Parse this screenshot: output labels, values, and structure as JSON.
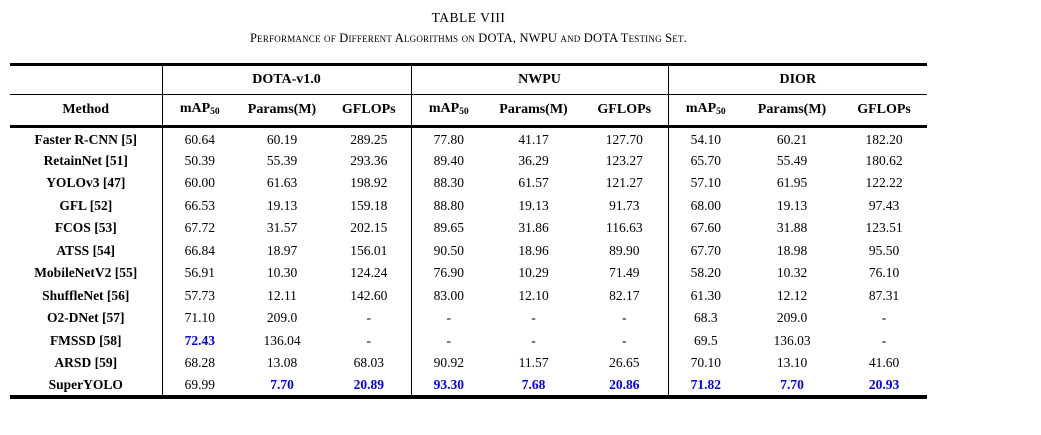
{
  "title": "TABLE VIII",
  "caption": "Performance of Different Algorithms on DOTA, NWPU and DOTA Testing Set.",
  "colors": {
    "highlight_blue": "#0000EE",
    "text": "#000000",
    "rules": "#000000"
  },
  "table": {
    "method_header": "Method",
    "groups": [
      "DOTA-v1.0",
      "NWPU",
      "DIOR"
    ],
    "metric_headers": {
      "map_label": "mAP",
      "map_subscript": "50",
      "params_label": "Params(M)",
      "gflops_label": "GFLOPs"
    },
    "rows": [
      {
        "method": "Faster R-CNN [5]",
        "values": [
          "60.64",
          "60.19",
          "289.25",
          "77.80",
          "41.17",
          "127.70",
          "54.10",
          "60.21",
          "182.20"
        ],
        "blue": []
      },
      {
        "method": "RetainNet [51]",
        "values": [
          "50.39",
          "55.39",
          "293.36",
          "89.40",
          "36.29",
          "123.27",
          "65.70",
          "55.49",
          "180.62"
        ],
        "blue": []
      },
      {
        "method": "YOLOv3 [47]",
        "values": [
          "60.00",
          "61.63",
          "198.92",
          "88.30",
          "61.57",
          "121.27",
          "57.10",
          "61.95",
          "122.22"
        ],
        "blue": []
      },
      {
        "method": "GFL [52]",
        "values": [
          "66.53",
          "19.13",
          "159.18",
          "88.80",
          "19.13",
          "91.73",
          "68.00",
          "19.13",
          "97.43"
        ],
        "blue": []
      },
      {
        "method": "FCOS [53]",
        "values": [
          "67.72",
          "31.57",
          "202.15",
          "89.65",
          "31.86",
          "116.63",
          "67.60",
          "31.88",
          "123.51"
        ],
        "blue": []
      },
      {
        "method": "ATSS [54]",
        "values": [
          "66.84",
          "18.97",
          "156.01",
          "90.50",
          "18.96",
          "89.90",
          "67.70",
          "18.98",
          "95.50"
        ],
        "blue": []
      },
      {
        "method": "MobileNetV2 [55]",
        "values": [
          "56.91",
          "10.30",
          "124.24",
          "76.90",
          "10.29",
          "71.49",
          "58.20",
          "10.32",
          "76.10"
        ],
        "blue": []
      },
      {
        "method": "ShuffleNet [56]",
        "values": [
          "57.73",
          "12.11",
          "142.60",
          "83.00",
          "12.10",
          "82.17",
          "61.30",
          "12.12",
          "87.31"
        ],
        "blue": []
      },
      {
        "method": "O2-DNet [57]",
        "values": [
          "71.10",
          "209.0",
          "-",
          "-",
          "-",
          "-",
          "68.3",
          "209.0",
          "-"
        ],
        "blue": []
      },
      {
        "method": "FMSSD [58]",
        "values": [
          "72.43",
          "136.04",
          "-",
          "-",
          "-",
          "-",
          "69.5",
          "136.03",
          "-"
        ],
        "blue": [
          0
        ]
      },
      {
        "method": "ARSD [59]",
        "values": [
          "68.28",
          "13.08",
          "68.03",
          "90.92",
          "11.57",
          "26.65",
          "70.10",
          "13.10",
          "41.60"
        ],
        "blue": []
      },
      {
        "method": "SuperYOLO",
        "values": [
          "69.99",
          "7.70",
          "20.89",
          "93.30",
          "7.68",
          "20.86",
          "71.82",
          "7.70",
          "20.93"
        ],
        "blue": [
          1,
          2,
          3,
          4,
          5,
          6,
          7,
          8
        ]
      }
    ]
  }
}
